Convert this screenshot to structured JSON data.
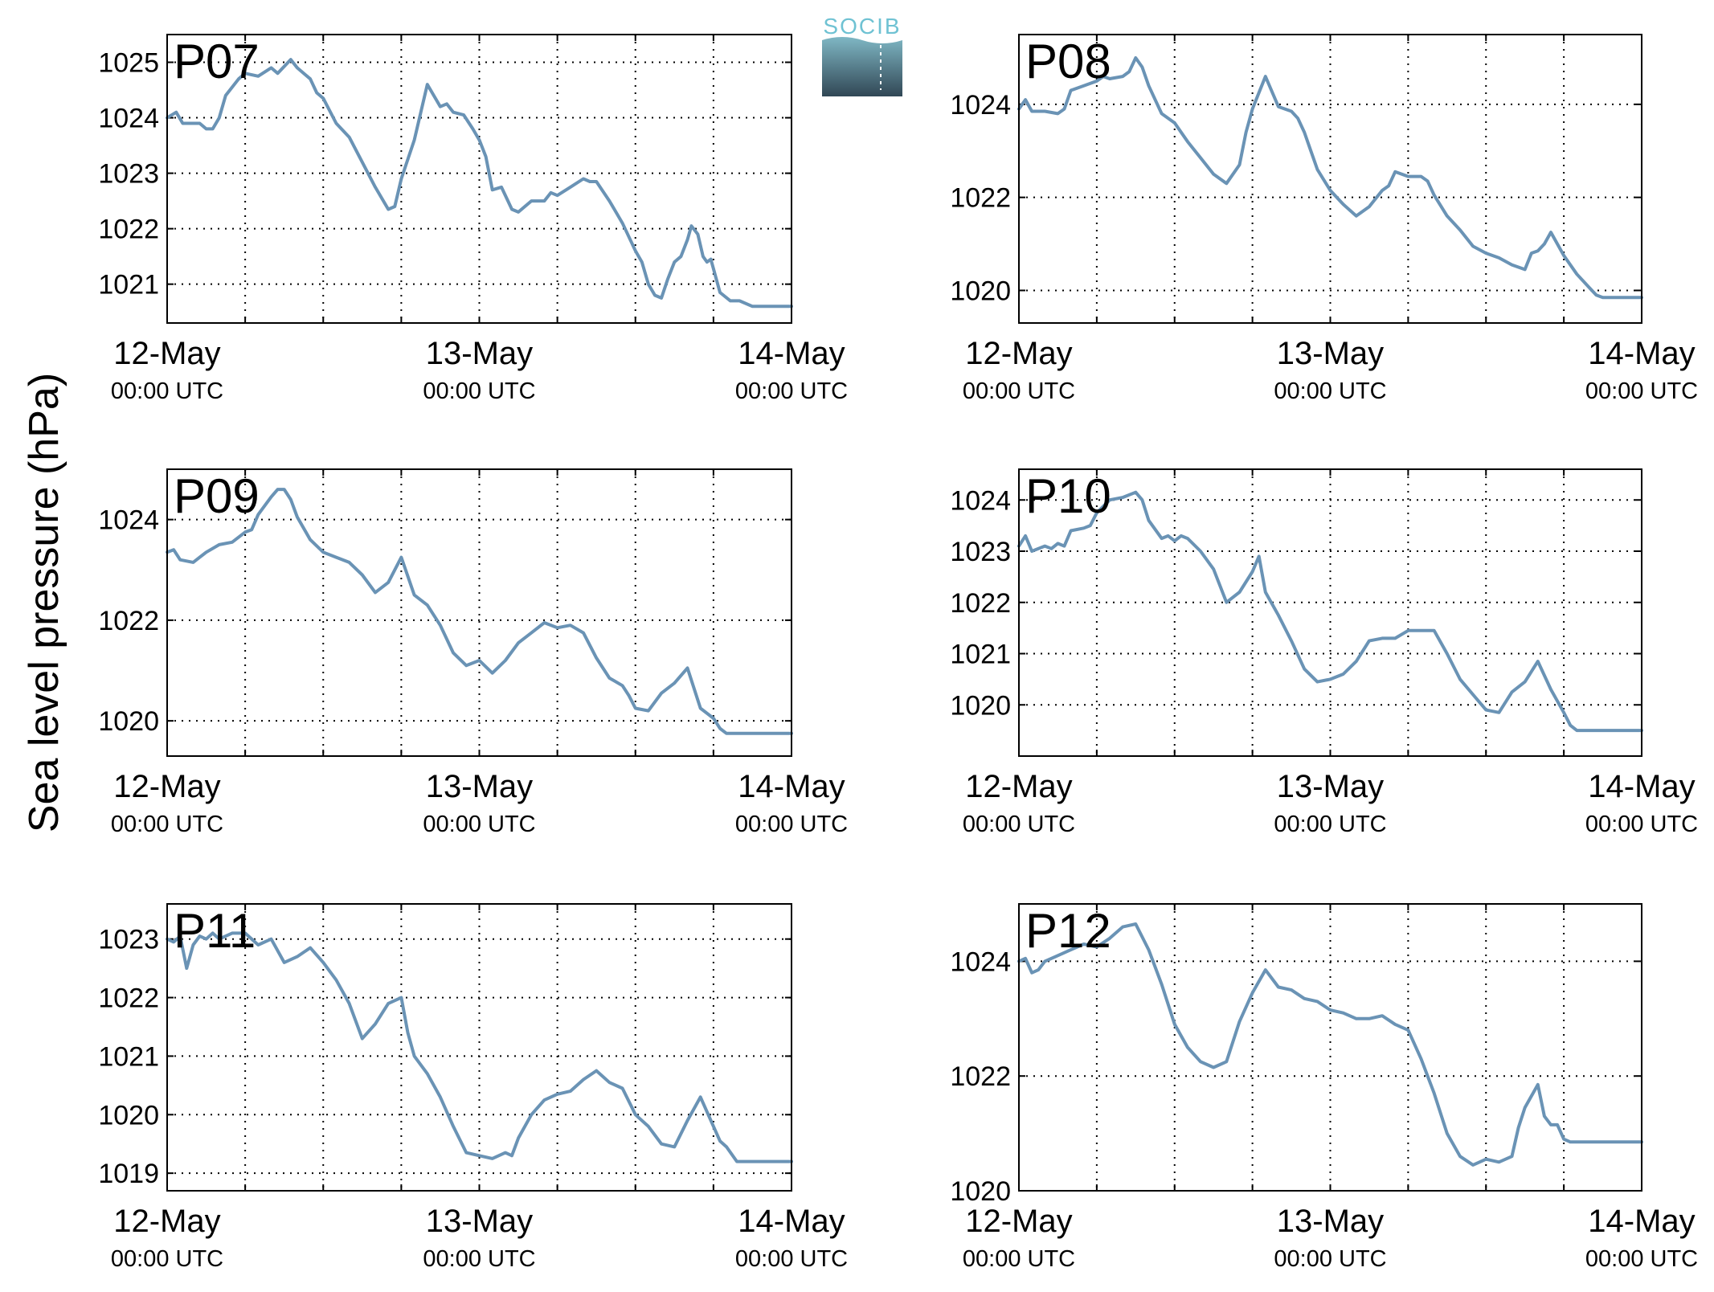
{
  "figure": {
    "ylabel": "Sea level pressure (hPa)",
    "logo_text": "SOCIB"
  },
  "colors": {
    "line": "#6a93b5",
    "panel_label": "#ff0000",
    "grid": "#000000",
    "logo_top": "#6fc2d3",
    "logo_bottom": "#314755"
  },
  "chart_data": [
    {
      "type": "line",
      "title": "P07",
      "xlim": [
        0,
        48
      ],
      "ylim": [
        1020.3,
        1025.5
      ],
      "yticks": [
        1021,
        1022,
        1023,
        1024,
        1025
      ],
      "x_tick_labels": [
        {
          "x": 0,
          "date": "12-May",
          "time": "00:00 UTC"
        },
        {
          "x": 24,
          "date": "13-May",
          "time": "00:00 UTC"
        },
        {
          "x": 48,
          "date": "14-May",
          "time": "00:00 UTC"
        }
      ],
      "x_grid_hours": [
        6,
        12,
        18,
        24,
        30,
        36,
        42
      ],
      "grid": true,
      "series": [
        {
          "x": [
            0,
            0.7,
            1.2,
            2,
            2.5,
            3,
            3.5,
            4,
            4.5,
            5.5,
            6,
            7,
            8,
            8.5,
            9.5,
            10,
            11,
            11.5,
            12,
            13,
            14,
            15,
            16,
            17,
            17.5,
            18,
            19,
            20,
            21,
            21.5,
            22,
            22.8,
            23.5,
            24,
            24.5,
            25,
            25.7,
            26.5,
            27,
            28,
            29,
            29.5,
            30,
            31,
            32,
            32.5,
            33,
            34,
            35,
            36,
            36.5,
            37,
            37.5,
            38,
            38.5,
            39,
            39.5,
            40,
            40.3,
            40.8,
            41.2,
            41.5,
            41.8,
            42.5,
            43.3,
            44,
            45,
            45.5,
            46,
            46.5,
            47,
            47.5,
            48
          ],
          "y": [
            1024,
            1024.1,
            1023.9,
            1023.9,
            1023.9,
            1023.8,
            1023.8,
            1024,
            1024.4,
            1024.7,
            1024.8,
            1024.75,
            1024.9,
            1024.8,
            1025.05,
            1024.9,
            1024.7,
            1024.45,
            1024.35,
            1023.9,
            1023.65,
            1023.2,
            1022.75,
            1022.35,
            1022.4,
            1022.9,
            1023.6,
            1024.6,
            1024.2,
            1024.25,
            1024.1,
            1024.05,
            1023.8,
            1023.6,
            1023.3,
            1022.7,
            1022.75,
            1022.35,
            1022.3,
            1022.5,
            1022.5,
            1022.65,
            1022.6,
            1022.75,
            1022.9,
            1022.85,
            1022.85,
            1022.5,
            1022.1,
            1021.6,
            1021.4,
            1021,
            1020.8,
            1020.75,
            1021.1,
            1021.4,
            1021.5,
            1021.8,
            1022.05,
            1021.9,
            1021.5,
            1021.4,
            1021.45,
            1020.85,
            1020.7,
            1020.7,
            1020.6,
            1020.6,
            1020.6,
            1020.6,
            1020.6,
            1020.6,
            1020.6
          ]
        }
      ]
    },
    {
      "type": "line",
      "title": "P08",
      "xlim": [
        0,
        48
      ],
      "ylim": [
        1019.3,
        1025.5
      ],
      "yticks": [
        1020,
        1022,
        1024
      ],
      "x_tick_labels": [
        {
          "x": 0,
          "date": "12-May",
          "time": "00:00 UTC"
        },
        {
          "x": 24,
          "date": "13-May",
          "time": "00:00 UTC"
        },
        {
          "x": 48,
          "date": "14-May",
          "time": "00:00 UTC"
        }
      ],
      "x_grid_hours": [
        6,
        12,
        18,
        24,
        30,
        36,
        42
      ],
      "grid": true,
      "series": [
        {
          "x": [
            0,
            0.5,
            1,
            2,
            3,
            3.5,
            4,
            4.5,
            5,
            6,
            6.5,
            7,
            8,
            8.5,
            9,
            9.5,
            10,
            11,
            12,
            13,
            14,
            15,
            16,
            17,
            17.5,
            18,
            19,
            20,
            21,
            21.5,
            22,
            22.5,
            23,
            24,
            25,
            26,
            27,
            28,
            28.5,
            29,
            30,
            31,
            31.5,
            32,
            33,
            34,
            35,
            36,
            37,
            38,
            39,
            39.5,
            40,
            40.5,
            41,
            42,
            43,
            44,
            44.5,
            45,
            45.5,
            46,
            46.5,
            47,
            47.5,
            48
          ],
          "y": [
            1023.9,
            1024.1,
            1023.85,
            1023.85,
            1023.8,
            1023.9,
            1024.3,
            1024.35,
            1024.4,
            1024.5,
            1024.6,
            1024.55,
            1024.6,
            1024.7,
            1025,
            1024.8,
            1024.4,
            1023.8,
            1023.6,
            1023.2,
            1022.85,
            1022.5,
            1022.3,
            1022.7,
            1023.4,
            1023.9,
            1024.6,
            1023.95,
            1023.85,
            1023.7,
            1023.4,
            1023,
            1022.6,
            1022.15,
            1021.85,
            1021.6,
            1021.8,
            1022.15,
            1022.25,
            1022.55,
            1022.45,
            1022.45,
            1022.35,
            1022.05,
            1021.6,
            1021.3,
            1020.95,
            1020.8,
            1020.7,
            1020.55,
            1020.45,
            1020.8,
            1020.85,
            1021,
            1021.25,
            1020.75,
            1020.35,
            1020.05,
            1019.9,
            1019.85,
            1019.85,
            1019.85,
            1019.85,
            1019.85,
            1019.85,
            1019.85
          ]
        }
      ]
    },
    {
      "type": "line",
      "title": "P09",
      "xlim": [
        0,
        48
      ],
      "ylim": [
        1019.3,
        1025.0
      ],
      "yticks": [
        1020,
        1022,
        1024
      ],
      "x_tick_labels": [
        {
          "x": 0,
          "date": "12-May",
          "time": "00:00 UTC"
        },
        {
          "x": 24,
          "date": "13-May",
          "time": "00:00 UTC"
        },
        {
          "x": 48,
          "date": "14-May",
          "time": "00:00 UTC"
        }
      ],
      "x_grid_hours": [
        6,
        12,
        18,
        24,
        30,
        36,
        42
      ],
      "grid": true,
      "series": [
        {
          "x": [
            0,
            0.5,
            1,
            2,
            2.5,
            3,
            4,
            5,
            6,
            6.5,
            7,
            8,
            8.5,
            9,
            9.5,
            10,
            11,
            12,
            13,
            14,
            15,
            16,
            17,
            18,
            19,
            20,
            21,
            22,
            23,
            24,
            25,
            26,
            27,
            28,
            29,
            30,
            31,
            32,
            33,
            34,
            35,
            35.5,
            36,
            37,
            38,
            39,
            40,
            41,
            42,
            42.5,
            43,
            44,
            45,
            45.5,
            46,
            46.5,
            47,
            47.5,
            48
          ],
          "y": [
            1023.35,
            1023.4,
            1023.2,
            1023.15,
            1023.25,
            1023.35,
            1023.5,
            1023.55,
            1023.75,
            1023.8,
            1024.1,
            1024.45,
            1024.6,
            1024.6,
            1024.4,
            1024.05,
            1023.6,
            1023.35,
            1023.25,
            1023.15,
            1022.9,
            1022.55,
            1022.75,
            1023.25,
            1022.5,
            1022.3,
            1021.9,
            1021.35,
            1021.1,
            1021.2,
            1020.95,
            1021.2,
            1021.55,
            1021.75,
            1021.95,
            1021.85,
            1021.9,
            1021.75,
            1021.25,
            1020.85,
            1020.7,
            1020.5,
            1020.25,
            1020.2,
            1020.55,
            1020.75,
            1021.05,
            1020.25,
            1020.05,
            1019.85,
            1019.75,
            1019.75,
            1019.75,
            1019.75,
            1019.75,
            1019.75,
            1019.75,
            1019.75,
            1019.75
          ]
        }
      ]
    },
    {
      "type": "line",
      "title": "P10",
      "xlim": [
        0,
        48
      ],
      "ylim": [
        1019.0,
        1024.6
      ],
      "yticks": [
        1020,
        1021,
        1022,
        1023,
        1024
      ],
      "x_tick_labels": [
        {
          "x": 0,
          "date": "12-May",
          "time": "00:00 UTC"
        },
        {
          "x": 24,
          "date": "13-May",
          "time": "00:00 UTC"
        },
        {
          "x": 48,
          "date": "14-May",
          "time": "00:00 UTC"
        }
      ],
      "x_grid_hours": [
        6,
        12,
        18,
        24,
        30,
        36,
        42
      ],
      "grid": true,
      "series": [
        {
          "x": [
            0,
            0.5,
            1,
            2,
            2.5,
            3,
            3.5,
            4,
            5,
            5.5,
            6,
            7,
            8,
            9,
            9.5,
            10,
            11,
            11.5,
            12,
            12.5,
            13,
            14,
            15,
            16,
            17,
            18,
            18.5,
            19,
            20,
            21,
            22,
            23,
            24,
            25,
            26,
            27,
            28,
            29,
            30,
            31,
            32,
            33,
            34,
            35,
            36,
            37,
            38,
            39,
            40,
            41,
            42,
            42.5,
            43,
            44,
            45,
            45.5,
            46,
            46.5,
            47,
            47.5,
            48
          ],
          "y": [
            1023.1,
            1023.3,
            1023.0,
            1023.1,
            1023.05,
            1023.15,
            1023.1,
            1023.4,
            1023.45,
            1023.5,
            1023.75,
            1024.0,
            1024.05,
            1024.15,
            1024.0,
            1023.6,
            1023.25,
            1023.3,
            1023.2,
            1023.3,
            1023.25,
            1023.0,
            1022.65,
            1022.0,
            1022.2,
            1022.6,
            1022.9,
            1022.2,
            1021.75,
            1021.25,
            1020.7,
            1020.45,
            1020.5,
            1020.6,
            1020.85,
            1021.25,
            1021.3,
            1021.3,
            1021.45,
            1021.45,
            1021.45,
            1021.0,
            1020.5,
            1020.2,
            1019.9,
            1019.85,
            1020.25,
            1020.45,
            1020.85,
            1020.3,
            1019.85,
            1019.6,
            1019.5,
            1019.5,
            1019.5,
            1019.5,
            1019.5,
            1019.5,
            1019.5,
            1019.5,
            1019.5
          ]
        }
      ]
    },
    {
      "type": "line",
      "title": "P11",
      "xlim": [
        0,
        48
      ],
      "ylim": [
        1018.7,
        1023.6
      ],
      "yticks": [
        1019,
        1020,
        1021,
        1022,
        1023
      ],
      "x_tick_labels": [
        {
          "x": 0,
          "date": "12-May",
          "time": "00:00 UTC"
        },
        {
          "x": 24,
          "date": "13-May",
          "time": "00:00 UTC"
        },
        {
          "x": 48,
          "date": "14-May",
          "time": "00:00 UTC"
        }
      ],
      "x_grid_hours": [
        6,
        12,
        18,
        24,
        30,
        36,
        42
      ],
      "grid": true,
      "series": [
        {
          "x": [
            0,
            0.5,
            1,
            1.5,
            2,
            2.5,
            3,
            3.5,
            4,
            5,
            6,
            7,
            8,
            9,
            10,
            11,
            12,
            13,
            14,
            15,
            16,
            17,
            18,
            18.5,
            19,
            20,
            21,
            22,
            23,
            24,
            25,
            26,
            26.5,
            27,
            28,
            29,
            30,
            31,
            32,
            33,
            34,
            35,
            36,
            37,
            38,
            39,
            40,
            41,
            42,
            42.5,
            43,
            43.8,
            44.5,
            45,
            45.5,
            46,
            47,
            47.5,
            48
          ],
          "y": [
            1023,
            1022.95,
            1023.05,
            1022.5,
            1022.9,
            1023.05,
            1023.0,
            1023.1,
            1023.0,
            1023.1,
            1023.1,
            1022.9,
            1023.0,
            1022.6,
            1022.7,
            1022.85,
            1022.6,
            1022.3,
            1021.9,
            1021.3,
            1021.55,
            1021.9,
            1022.0,
            1021.4,
            1021.0,
            1020.7,
            1020.3,
            1019.8,
            1019.35,
            1019.3,
            1019.25,
            1019.35,
            1019.3,
            1019.6,
            1020.0,
            1020.25,
            1020.35,
            1020.4,
            1020.6,
            1020.75,
            1020.55,
            1020.45,
            1020.0,
            1019.8,
            1019.5,
            1019.45,
            1019.9,
            1020.3,
            1019.8,
            1019.55,
            1019.45,
            1019.2,
            1019.2,
            1019.2,
            1019.2,
            1019.2,
            1019.2,
            1019.2,
            1019.2
          ]
        }
      ]
    },
    {
      "type": "line",
      "title": "P12",
      "xlim": [
        0,
        48
      ],
      "ylim": [
        1020.0,
        1025.0
      ],
      "yticks": [
        1020,
        1022,
        1024
      ],
      "x_tick_labels": [
        {
          "x": 0,
          "date": "12-May",
          "time": "00:00 UTC"
        },
        {
          "x": 24,
          "date": "13-May",
          "time": "00:00 UTC"
        },
        {
          "x": 48,
          "date": "14-May",
          "time": "00:00 UTC"
        }
      ],
      "x_grid_hours": [
        6,
        12,
        18,
        24,
        30,
        36,
        42
      ],
      "grid": true,
      "series": [
        {
          "x": [
            0,
            0.5,
            1,
            1.5,
            2,
            3,
            4,
            5,
            6,
            7,
            8,
            9,
            10,
            11,
            12,
            13,
            14,
            15,
            16,
            17,
            18,
            19,
            20,
            21,
            22,
            23,
            24,
            25,
            26,
            27,
            28,
            29,
            30,
            31,
            32,
            33,
            34,
            35,
            36,
            37,
            38,
            38.5,
            39,
            40,
            40.5,
            41,
            41.5,
            42,
            42.5,
            43,
            44,
            44.5,
            45,
            45.5,
            46,
            46.5,
            47,
            47.5,
            48
          ],
          "y": [
            1024,
            1024.05,
            1023.8,
            1023.85,
            1024.0,
            1024.1,
            1024.2,
            1024.3,
            1024.25,
            1024.4,
            1024.6,
            1024.65,
            1024.2,
            1023.6,
            1022.9,
            1022.5,
            1022.25,
            1022.15,
            1022.25,
            1022.95,
            1023.45,
            1023.85,
            1023.55,
            1023.5,
            1023.35,
            1023.3,
            1023.15,
            1023.1,
            1023.0,
            1023.0,
            1023.05,
            1022.9,
            1022.8,
            1022.3,
            1021.7,
            1021.0,
            1020.6,
            1020.45,
            1020.55,
            1020.5,
            1020.6,
            1021.1,
            1021.45,
            1021.85,
            1021.3,
            1021.15,
            1021.15,
            1020.9,
            1020.85,
            1020.85,
            1020.85,
            1020.85,
            1020.85,
            1020.85,
            1020.85,
            1020.85,
            1020.85,
            1020.85,
            1020.85
          ]
        }
      ]
    }
  ]
}
